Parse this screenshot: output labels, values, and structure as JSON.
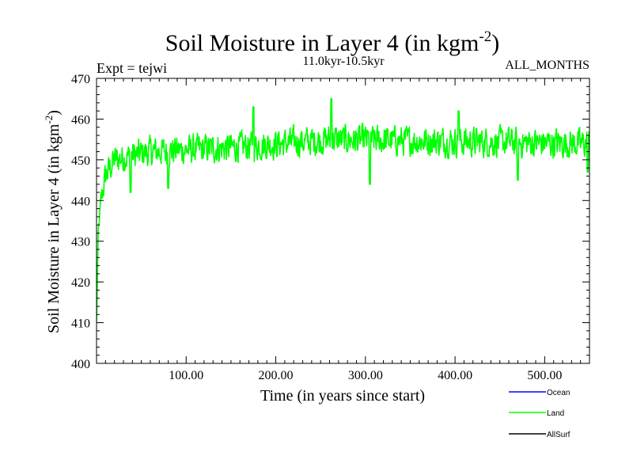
{
  "chart_data": {
    "type": "line",
    "title": "Soil Moisture in Layer 4 (in kgm",
    "title_sup": "-2",
    "title_close": ")",
    "subtitle": "11.0kyr-10.5kyr",
    "expt_label": "Expt = tejwi",
    "period_label": "ALL_MONTHS",
    "xlabel": "Time (in years since start)",
    "ylabel": "Soil Moisture in Layer 4 (in kgm",
    "ylabel_sup": "-2",
    "ylabel_close": ")",
    "xlim": [
      0,
      550
    ],
    "ylim": [
      400,
      470
    ],
    "x_ticks": [
      100,
      200,
      300,
      400,
      500
    ],
    "x_tick_labels": [
      "100.00",
      "200.00",
      "300.00",
      "400.00",
      "500.00"
    ],
    "y_ticks": [
      400,
      410,
      420,
      430,
      440,
      450,
      460,
      470
    ],
    "y_tick_labels": [
      "400",
      "410",
      "420",
      "430",
      "440",
      "450",
      "460",
      "470"
    ],
    "series": [
      {
        "name": "Ocean",
        "color": "#0000ff",
        "values": []
      },
      {
        "name": "Land",
        "color": "#00ff00",
        "x_start": 0,
        "x_step": 0.5,
        "n_points": 1100,
        "trend": [
          [
            0,
            410
          ],
          [
            2,
            432
          ],
          [
            5,
            440
          ],
          [
            10,
            446
          ],
          [
            20,
            450
          ],
          [
            60,
            452
          ],
          [
            150,
            453
          ],
          [
            260,
            455
          ],
          [
            400,
            454.5
          ],
          [
            550,
            454
          ]
        ],
        "noise_amplitude": 3.2,
        "peaks": [
          [
            175,
            463
          ],
          [
            262,
            465
          ],
          [
            404,
            462
          ],
          [
            552,
            459
          ]
        ],
        "troughs": [
          [
            38,
            442
          ],
          [
            80,
            443
          ],
          [
            305,
            444
          ],
          [
            470,
            445
          ],
          [
            548,
            447
          ]
        ]
      },
      {
        "name": "AllSurf",
        "color": "#000000",
        "values": []
      }
    ],
    "legend_position": "bottom-right",
    "grid": false
  }
}
